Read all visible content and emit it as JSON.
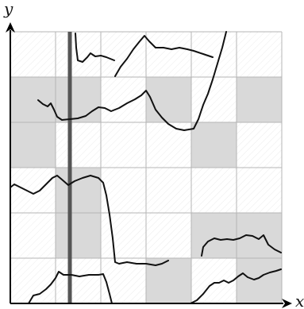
{
  "axes": {
    "x_label": "x",
    "y_label": "y"
  },
  "grid": {
    "columns": 6,
    "rows": 6,
    "shaded_cells": [
      [
        0,
        3
      ],
      [
        0,
        4
      ],
      [
        1,
        1
      ],
      [
        1,
        2
      ],
      [
        1,
        4
      ],
      [
        3,
        0
      ],
      [
        4,
        1
      ],
      [
        5,
        0
      ],
      [
        5,
        1
      ],
      [
        3,
        4
      ],
      [
        4,
        3
      ],
      [
        5,
        4
      ]
    ]
  },
  "colors": {
    "shade": "#d9d9d9",
    "grid_line": "#b5b5b5",
    "curve": "#111111",
    "thick_line": "#555555",
    "axis": "#000000"
  }
}
